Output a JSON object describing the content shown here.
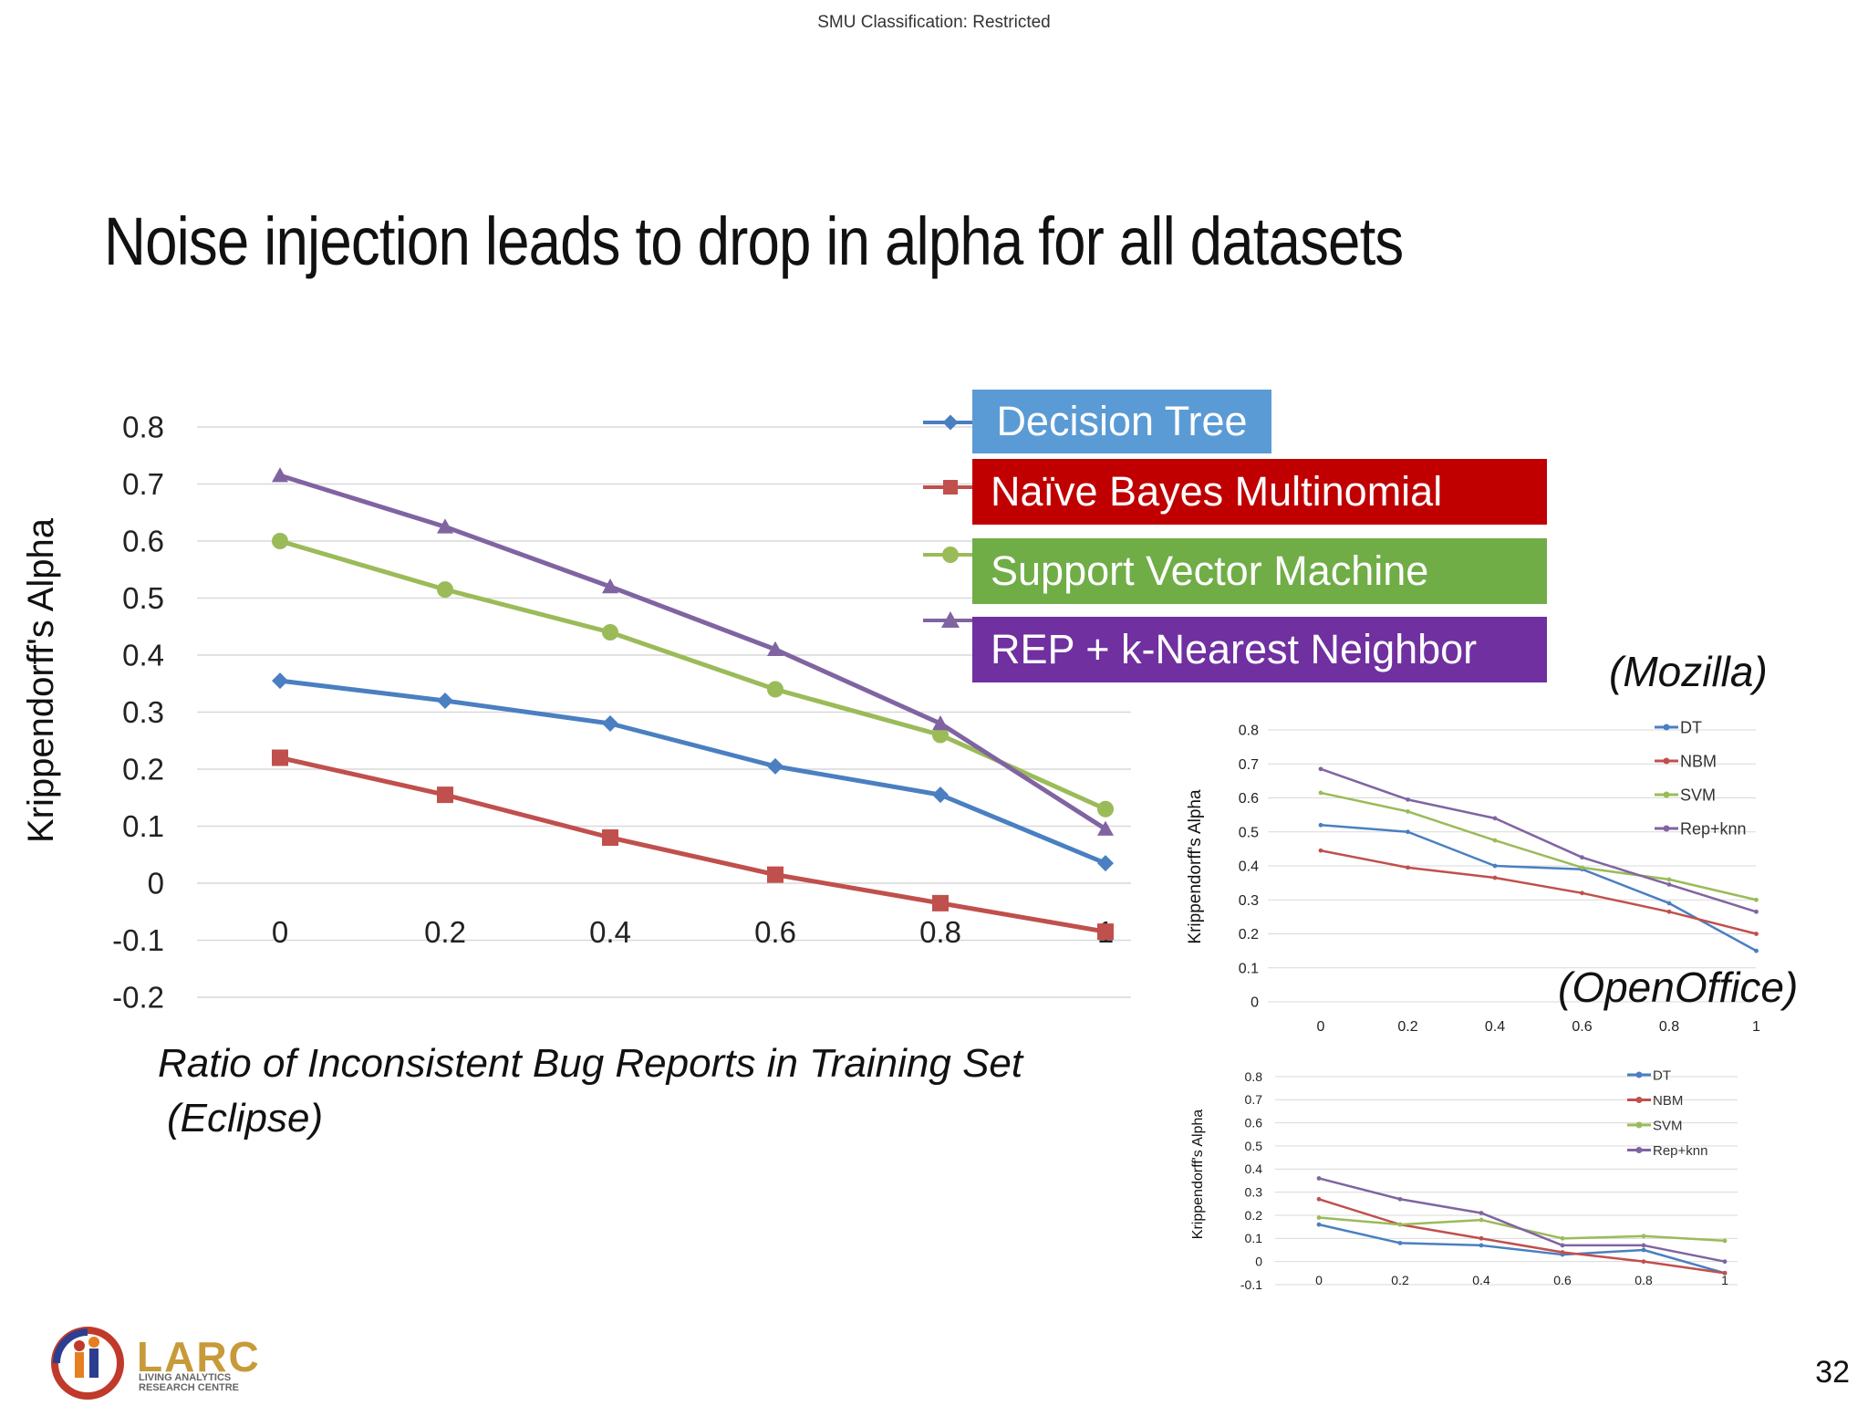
{
  "header": {
    "classification": "SMU Classification: Restricted"
  },
  "slide_title": "Noise injection leads to drop in alpha for all datasets",
  "legend": {
    "dt": "Decision Tree",
    "nbm": "Naïve Bayes Multinomial",
    "svm": "Support Vector Machine",
    "knn": "REP + k-Nearest Neighbor"
  },
  "labels": {
    "eclipse": "(Eclipse)",
    "mozilla": "(Mozilla)",
    "openoffice": "(OpenOffice)"
  },
  "footer": {
    "page_number": "32",
    "logo_text": "LARC",
    "logo_sub_1": "LIVING ANALYTICS",
    "logo_sub_2": "RESEARCH CENTRE"
  },
  "colors": {
    "dt": "#4a7fc1",
    "nbm": "#c0504d",
    "svm": "#9bbb59",
    "knn": "#8064a2"
  },
  "chart_data": [
    {
      "id": "eclipse",
      "type": "line",
      "xlabel": "Ratio of Inconsistent Bug Reports in Training Set",
      "ylabel": "Krippendorff's Alpha",
      "x": [
        0,
        0.2,
        0.4,
        0.6,
        0.8,
        1
      ],
      "x_tick_labels": [
        "0",
        "0.2",
        "0.4",
        "0.6",
        "0.8",
        "1"
      ],
      "ylim": [
        -0.2,
        0.8
      ],
      "y_ticks": [
        "0.8",
        "0.7",
        "0.6",
        "0.5",
        "0.4",
        "0.3",
        "0.2",
        "0.1",
        "0",
        "-0.1",
        "-0.2"
      ],
      "grid": true,
      "series": [
        {
          "key": "dt",
          "marker": "diamond",
          "values": [
            0.355,
            0.32,
            0.28,
            0.205,
            0.155,
            0.035
          ]
        },
        {
          "key": "nbm",
          "marker": "square",
          "values": [
            0.22,
            0.155,
            0.08,
            0.015,
            -0.035,
            -0.085
          ]
        },
        {
          "key": "svm",
          "marker": "circle",
          "values": [
            0.6,
            0.515,
            0.44,
            0.34,
            0.26,
            0.13
          ]
        },
        {
          "key": "knn",
          "marker": "triangle",
          "values": [
            0.715,
            0.625,
            0.52,
            0.41,
            0.28,
            0.095
          ]
        }
      ]
    },
    {
      "id": "mozilla",
      "type": "line",
      "ylabel": "Krippendorff's Alpha",
      "x": [
        0,
        0.2,
        0.4,
        0.6,
        0.8,
        1
      ],
      "x_tick_labels": [
        "0",
        "0.2",
        "0.4",
        "0.6",
        "0.8",
        "1"
      ],
      "ylim": [
        0,
        0.8
      ],
      "y_ticks": [
        "0.8",
        "0.7",
        "0.6",
        "0.5",
        "0.4",
        "0.3",
        "0.2",
        "0.1",
        "0"
      ],
      "grid": true,
      "legend_entries": [
        "DT",
        "NBM",
        "SVM",
        "Rep+knn"
      ],
      "legend_position": "top-right",
      "series": [
        {
          "key": "dt",
          "name": "DT",
          "values": [
            0.52,
            0.5,
            0.4,
            0.39,
            0.29,
            0.15
          ]
        },
        {
          "key": "nbm",
          "name": "NBM",
          "values": [
            0.445,
            0.395,
            0.365,
            0.32,
            0.265,
            0.2
          ]
        },
        {
          "key": "svm",
          "name": "SVM",
          "values": [
            0.615,
            0.56,
            0.475,
            0.395,
            0.36,
            0.3
          ]
        },
        {
          "key": "knn",
          "name": "Rep+knn",
          "values": [
            0.685,
            0.595,
            0.54,
            0.425,
            0.345,
            0.265
          ]
        }
      ]
    },
    {
      "id": "openoffice",
      "type": "line",
      "ylabel": "Krippendorff's Alpha",
      "x": [
        0,
        0.2,
        0.4,
        0.6,
        0.8,
        1
      ],
      "x_tick_labels": [
        "0",
        "0.2",
        "0.4",
        "0.6",
        "0.8",
        "1"
      ],
      "ylim": [
        -0.1,
        0.8
      ],
      "y_ticks": [
        "0.8",
        "0.7",
        "0.6",
        "0.5",
        "0.4",
        "0.3",
        "0.2",
        "0.1",
        "0",
        "-0.1"
      ],
      "grid": true,
      "legend_entries": [
        "DT",
        "NBM",
        "SVM",
        "Rep+knn"
      ],
      "legend_position": "top-right",
      "series": [
        {
          "key": "dt",
          "name": "DT",
          "values": [
            0.16,
            0.08,
            0.07,
            0.03,
            0.05,
            -0.05
          ]
        },
        {
          "key": "nbm",
          "name": "NBM",
          "values": [
            0.27,
            0.16,
            0.1,
            0.04,
            0.0,
            -0.05
          ]
        },
        {
          "key": "svm",
          "name": "SVM",
          "values": [
            0.19,
            0.16,
            0.18,
            0.1,
            0.11,
            0.09
          ]
        },
        {
          "key": "knn",
          "name": "Rep+knn",
          "values": [
            0.36,
            0.27,
            0.21,
            0.07,
            0.07,
            0.0
          ]
        }
      ]
    }
  ]
}
